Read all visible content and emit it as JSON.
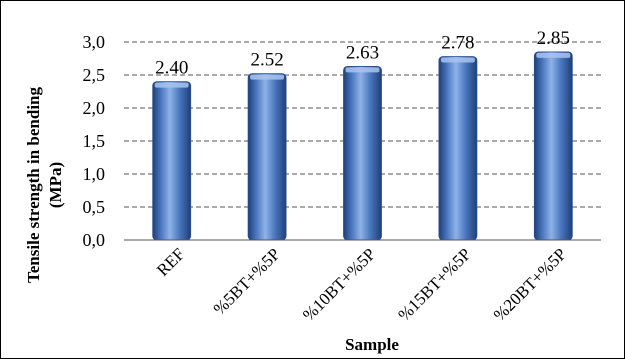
{
  "chart_data": {
    "type": "bar",
    "categories": [
      "REF",
      "%5BT+%5P",
      "%10BT+%5P",
      "%15BT+%5P",
      "%20BT+%5P"
    ],
    "values": [
      2.4,
      2.52,
      2.63,
      2.78,
      2.85
    ],
    "data_labels": [
      "2.40",
      "2.52",
      "2.63",
      "2.78",
      "2.85"
    ],
    "y_ticks": [
      "0,0",
      "0,5",
      "1,0",
      "1,5",
      "2,0",
      "2,5",
      "3,0"
    ],
    "ylim": [
      0,
      3.0
    ],
    "xlabel": "Sample",
    "ylabel_line1": "Tensile strength in bending",
    "ylabel_line2": "(MPa)",
    "grid": "horizontal-dashed",
    "legend": "none",
    "bar_color": "#4f81bd"
  }
}
